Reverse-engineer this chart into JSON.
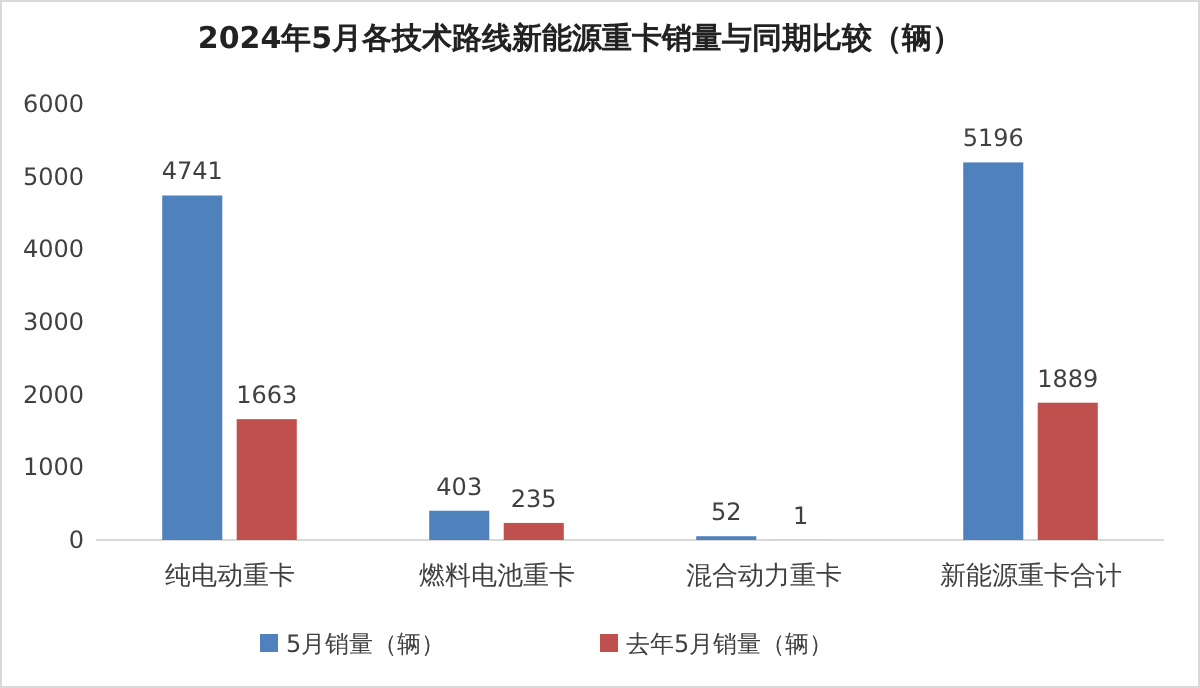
{
  "chart_data": {
    "type": "bar",
    "title": "2024年5月各技术路线新能源重卡销量与同期比较（辆）",
    "categories": [
      "纯电动重卡",
      "燃料电池重卡",
      "混合动力重卡",
      "新能源重卡合计"
    ],
    "series": [
      {
        "name": "5月销量（辆）",
        "color": "#4f81bd",
        "values": [
          4741,
          403,
          52,
          5196
        ]
      },
      {
        "name": "去年5月销量（辆）",
        "color": "#c0504d",
        "values": [
          1663,
          235,
          1,
          1889
        ]
      }
    ],
    "ylim": [
      0,
      6000
    ],
    "yticks": [
      0,
      1000,
      2000,
      3000,
      4000,
      5000,
      6000
    ],
    "grid": false,
    "legend": "bottom",
    "data_labels": true
  }
}
